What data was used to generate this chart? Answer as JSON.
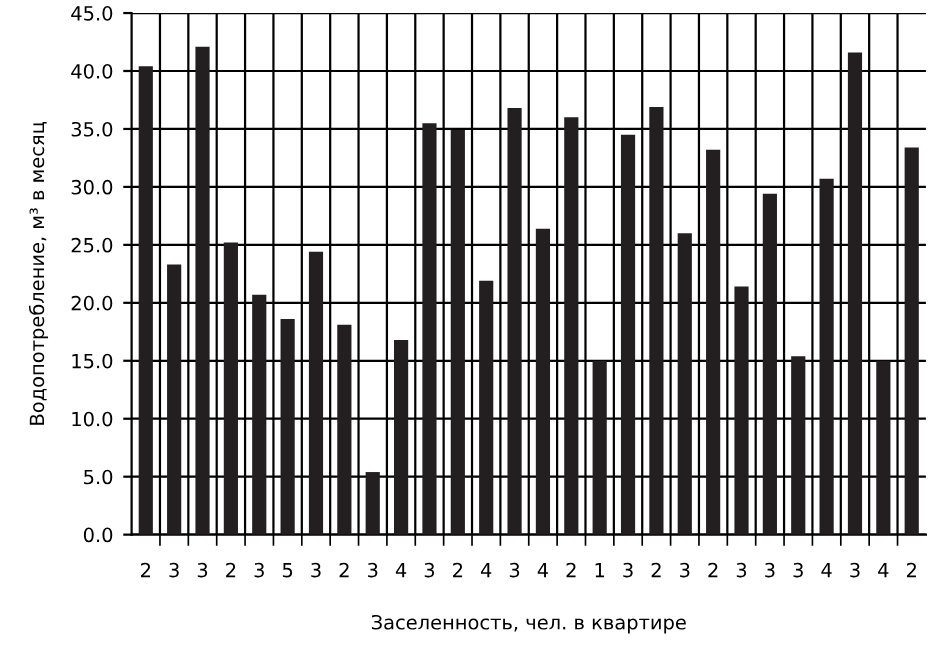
{
  "chart_data": {
    "type": "bar",
    "xlabel": "Заселенность, чел. в квартире",
    "ylabel": "Водопотребление, м³ в месяц",
    "categories": [
      "2",
      "3",
      "3",
      "2",
      "3",
      "5",
      "3",
      "2",
      "3",
      "4",
      "3",
      "2",
      "4",
      "3",
      "4",
      "2",
      "1",
      "3",
      "2",
      "3",
      "2",
      "3",
      "3",
      "3",
      "4",
      "3",
      "4",
      "2"
    ],
    "values": [
      40.4,
      23.3,
      42.1,
      25.2,
      20.7,
      18.6,
      24.4,
      18.1,
      5.4,
      16.8,
      35.5,
      34.9,
      21.9,
      36.8,
      26.4,
      36.0,
      15.0,
      34.5,
      36.9,
      26.0,
      33.2,
      21.4,
      29.4,
      15.4,
      30.7,
      41.6,
      15.0,
      33.4
    ],
    "color": "#231f20",
    "ylim": [
      0,
      45
    ],
    "yticks": [
      {
        "value": 0,
        "label": "0.0"
      },
      {
        "value": 5,
        "label": "5.0"
      },
      {
        "value": 10,
        "label": "10.0"
      },
      {
        "value": 15,
        "label": "15.0"
      },
      {
        "value": 20,
        "label": "20.0"
      },
      {
        "value": 25,
        "label": "25.0"
      },
      {
        "value": 30,
        "label": "30.0"
      },
      {
        "value": 35,
        "label": "35.0"
      },
      {
        "value": 40,
        "label": "40.0"
      },
      {
        "value": 45,
        "label": "45.0"
      }
    ],
    "grid": true
  }
}
